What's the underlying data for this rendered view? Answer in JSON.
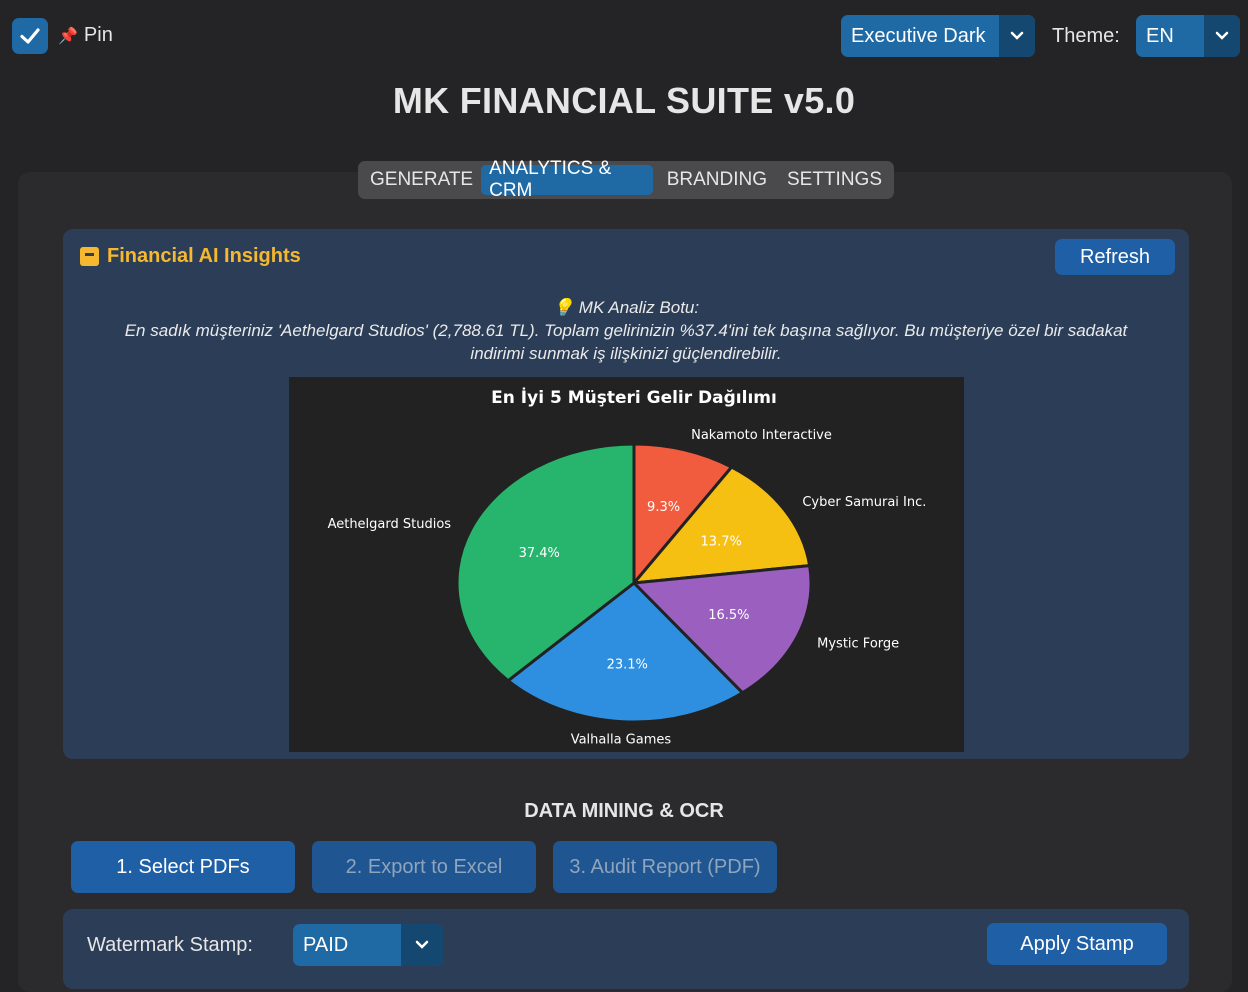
{
  "top_bar": {
    "pin_checked": true,
    "pin_label": "Pin",
    "style_select": "Executive Dark",
    "theme_label": "Theme:",
    "language_select": "EN"
  },
  "app_title": "MK FINANCIAL SUITE v5.0",
  "tabs": [
    {
      "label": "GENERATE",
      "active": false
    },
    {
      "label": "ANALYTICS & CRM",
      "active": true
    },
    {
      "label": "BRANDING",
      "active": false
    },
    {
      "label": "SETTINGS",
      "active": false
    }
  ],
  "insights": {
    "title": "Financial AI Insights",
    "refresh_label": "Refresh",
    "bot_name": "MK Analiz Botu:",
    "bot_message": "En sadık müşteriniz 'Aethelgard Studios' (2,788.61 TL). Toplam gelirinizin %37.4'ini tek başına sağlıyor. Bu müşteriye özel bir sadakat indirimi sunmak iş ilişkinizi güçlendirebilir."
  },
  "chart_data": {
    "type": "pie",
    "title": "En İyi 5 Müşteri Gelir Dağılımı",
    "slices": [
      {
        "label": "Nakamoto Interactive",
        "value": 9.3,
        "display": "9.3%",
        "color": "#f25c3e"
      },
      {
        "label": "Cyber Samurai Inc.",
        "value": 13.7,
        "display": "13.7%",
        "color": "#f6c012"
      },
      {
        "label": "Mystic Forge",
        "value": 16.5,
        "display": "16.5%",
        "color": "#9b5fc0"
      },
      {
        "label": "Valhalla Games",
        "value": 23.1,
        "display": "23.1%",
        "color": "#2e8fe0"
      },
      {
        "label": "Aethelgard Studios",
        "value": 37.4,
        "display": "37.4%",
        "color": "#27b56e"
      }
    ]
  },
  "data_mining": {
    "title": "DATA MINING & OCR",
    "buttons": [
      {
        "label": "1. Select PDFs",
        "enabled": true
      },
      {
        "label": "2. Export to Excel",
        "enabled": false
      },
      {
        "label": "3. Audit Report (PDF)",
        "enabled": false
      }
    ]
  },
  "watermark": {
    "label": "Watermark Stamp:",
    "selected": "PAID",
    "apply_label": "Apply Stamp"
  },
  "colors": {
    "accent": "#1f6aa5",
    "insight_title": "#f5b82e",
    "panel": "#2c3e57",
    "background": "#242426"
  }
}
